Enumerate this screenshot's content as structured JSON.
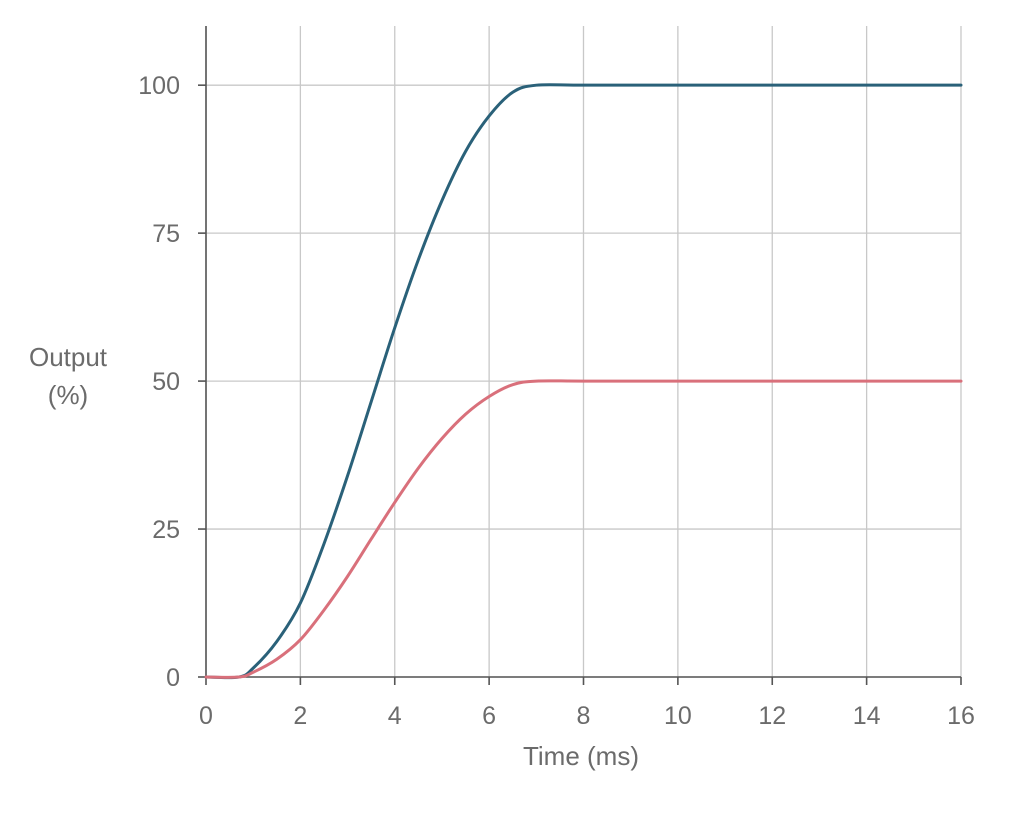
{
  "chart_data": {
    "type": "line",
    "title": "",
    "xlabel": "Time (ms)",
    "ylabel": [
      "Output",
      "(%)"
    ],
    "xlim": [
      0,
      16
    ],
    "ylim": [
      0,
      110
    ],
    "xticks": [
      0,
      2,
      4,
      6,
      8,
      10,
      12,
      14,
      16
    ],
    "yticks": [
      0,
      25,
      50,
      75,
      100
    ],
    "grid": true,
    "legend": "none",
    "series": [
      {
        "color": "#2a6179",
        "x": [
          0,
          0.7,
          1.0,
          1.5,
          2.0,
          2.5,
          3.0,
          3.5,
          4.0,
          4.5,
          5.0,
          5.5,
          6.0,
          6.5,
          7.0,
          8.0,
          10.0,
          12.0,
          14.0,
          16.0
        ],
        "y": [
          0,
          0,
          1.5,
          6.0,
          12.5,
          22.5,
          34.0,
          46.5,
          59.0,
          70.5,
          80.5,
          88.8,
          94.8,
          98.8,
          100,
          100,
          100,
          100,
          100,
          100
        ]
      },
      {
        "color": "#d9707b",
        "x": [
          0,
          0.7,
          1.0,
          1.5,
          2.0,
          2.5,
          3.0,
          3.5,
          4.0,
          4.5,
          5.0,
          5.5,
          6.0,
          6.5,
          7.0,
          8.0,
          10.0,
          12.0,
          14.0,
          16.0
        ],
        "y": [
          0,
          0,
          0.8,
          3.0,
          6.3,
          11.3,
          17.0,
          23.3,
          29.5,
          35.3,
          40.3,
          44.4,
          47.4,
          49.4,
          50,
          50,
          50,
          50,
          50,
          50
        ]
      }
    ]
  }
}
